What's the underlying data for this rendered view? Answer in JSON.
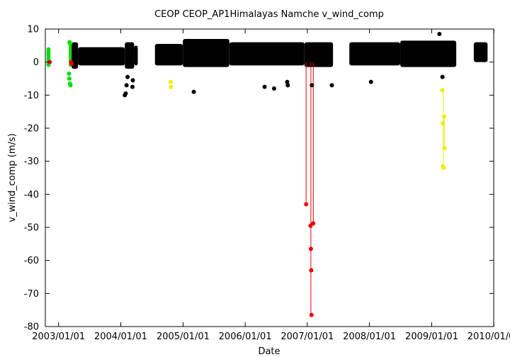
{
  "chart_data": {
    "type": "scatter",
    "title": "CEOP CEOP_AP1Himalayas Namche  v_wind_comp",
    "xlabel": "Date",
    "ylabel": "v_wind_comp (m/s)",
    "xlim": [
      "2002-10-15",
      "2009-12-31"
    ],
    "ylim": [
      -80,
      10
    ],
    "grid": false,
    "legend": "none",
    "x_ticks": [
      "2003/01/01",
      "2004/01/01",
      "2005/01/01",
      "2006/01/01",
      "2007/01/01",
      "2008/01/01",
      "2009/01/01",
      "2010/01/01"
    ],
    "y_ticks": [
      10,
      0,
      -10,
      -20,
      -30,
      -40,
      -50,
      -60,
      -70,
      -80
    ],
    "colors": {
      "black": "#000000",
      "green": "#00dd00",
      "red": "#ee0000",
      "yellow": "#eeee00",
      "axis": "#000000"
    },
    "series": [
      {
        "color": "green",
        "bands": [
          {
            "start": "2002-10-22",
            "end": "2002-11-14",
            "low": -1.5,
            "high": 4.5
          },
          {
            "start": "2003-03-02",
            "end": "2003-03-17",
            "low": -1.5,
            "high": 6
          }
        ],
        "points": [
          {
            "x": "2003-03-03",
            "y": -3.5
          },
          {
            "x": "2003-03-05",
            "y": -5
          },
          {
            "x": "2003-03-08",
            "y": -6.5
          },
          {
            "x": "2003-03-12",
            "y": -7
          },
          {
            "x": "2003-03-10",
            "y": 5.5
          },
          {
            "x": "2003-03-06",
            "y": 6
          }
        ]
      },
      {
        "color": "black",
        "bands": [
          {
            "start": "2003-03-18",
            "end": "2003-04-25",
            "low": -2,
            "high": 6
          },
          {
            "start": "2003-04-25",
            "end": "2004-01-25",
            "low": -1,
            "high": 4.5
          },
          {
            "start": "2004-01-25",
            "end": "2004-03-20",
            "low": -2,
            "high": 6
          },
          {
            "start": "2004-03-20",
            "end": "2004-04-10",
            "low": -1,
            "high": 5
          },
          {
            "start": "2004-07-20",
            "end": "2004-12-31",
            "low": -1,
            "high": 5.5
          },
          {
            "start": "2004-12-31",
            "end": "2005-09-30",
            "low": -1.5,
            "high": 7
          },
          {
            "start": "2005-09-30",
            "end": "2006-12-15",
            "low": -1,
            "high": 6
          },
          {
            "start": "2006-12-15",
            "end": "2007-06-01",
            "low": -1.5,
            "high": 6
          },
          {
            "start": "2007-09-05",
            "end": "2008-06-30",
            "low": -1,
            "high": 6
          },
          {
            "start": "2008-06-30",
            "end": "2009-05-25",
            "low": -1.5,
            "high": 6.5
          },
          {
            "start": "2009-09-05",
            "end": "2009-11-25",
            "low": 0,
            "high": 6
          }
        ],
        "points": [
          {
            "x": "2004-01-25",
            "y": -10
          },
          {
            "x": "2004-01-30",
            "y": -9.5
          },
          {
            "x": "2004-02-04",
            "y": -7
          },
          {
            "x": "2004-02-10",
            "y": -4.5
          },
          {
            "x": "2004-03-10",
            "y": -7.5
          },
          {
            "x": "2004-03-12",
            "y": -5.5
          },
          {
            "x": "2005-03-05",
            "y": -9
          },
          {
            "x": "2006-04-25",
            "y": -7.5
          },
          {
            "x": "2006-06-20",
            "y": -8
          },
          {
            "x": "2006-09-05",
            "y": -6
          },
          {
            "x": "2006-09-08",
            "y": -7
          },
          {
            "x": "2007-01-28",
            "y": -7
          },
          {
            "x": "2007-05-25",
            "y": -7
          },
          {
            "x": "2008-01-10",
            "y": -6
          },
          {
            "x": "2009-02-15",
            "y": 8.5
          },
          {
            "x": "2009-03-05",
            "y": -4.5
          }
        ]
      },
      {
        "color": "red",
        "points": [
          {
            "x": "2002-11-10",
            "y": 0
          },
          {
            "x": "2003-03-15",
            "y": 0
          },
          {
            "x": "2003-03-18",
            "y": -0.5
          },
          {
            "x": "2006-12-25",
            "y": -43
          },
          {
            "x": "2007-01-20",
            "y": -49.5
          },
          {
            "x": "2007-01-22",
            "y": -56.5
          },
          {
            "x": "2007-01-24",
            "y": -63
          },
          {
            "x": "2007-01-26",
            "y": -76.5
          },
          {
            "x": "2007-02-05",
            "y": -48.8
          }
        ]
      },
      {
        "color": "yellow",
        "points": [
          {
            "x": "2004-10-20",
            "y": -6
          },
          {
            "x": "2004-10-22",
            "y": -7.5
          },
          {
            "x": "2009-03-05",
            "y": -8.5
          },
          {
            "x": "2009-03-07",
            "y": -18.5
          },
          {
            "x": "2009-03-08",
            "y": -31.5
          },
          {
            "x": "2009-03-12",
            "y": -32
          },
          {
            "x": "2009-03-15",
            "y": -16.5
          },
          {
            "x": "2009-03-18",
            "y": -26
          }
        ]
      }
    ],
    "spikes": [
      {
        "color": "red",
        "x": "2006-12-25",
        "from": 0,
        "to": -43
      },
      {
        "color": "red",
        "x": "2007-01-22",
        "from": 0,
        "to": -76.5
      },
      {
        "color": "red",
        "x": "2007-02-05",
        "from": 0,
        "to": -48.8
      },
      {
        "color": "yellow",
        "x": "2009-03-10",
        "from": -8.5,
        "to": -32
      },
      {
        "color": "yellow",
        "x": "2009-03-16",
        "from": -16.5,
        "to": -26
      }
    ]
  }
}
